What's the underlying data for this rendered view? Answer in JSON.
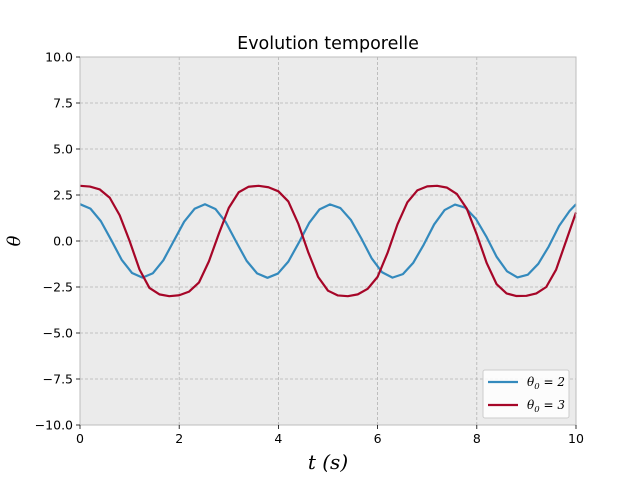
{
  "chart_data": {
    "type": "line",
    "title": "Evolution temporelle",
    "xlabel": "t (s)",
    "ylabel": "θ",
    "xlim": [
      0,
      10
    ],
    "ylim": [
      -10,
      10
    ],
    "xticks": [
      0,
      2,
      4,
      6,
      8,
      10
    ],
    "xtick_labels": [
      "0",
      "2",
      "4",
      "6",
      "8",
      "10"
    ],
    "yticks": [
      10,
      7.5,
      5,
      2.5,
      0,
      -2.5,
      -5,
      -7.5,
      -10
    ],
    "ytick_labels": [
      "10.0",
      "7.5",
      "5.0",
      "2.5",
      "0.0",
      "−2.5",
      "−5.0",
      "−7.5",
      "−10.0"
    ],
    "grid": true,
    "legend_position": "lower-right",
    "background": "#ebebeb",
    "series": [
      {
        "name": "θ0 = 2",
        "legend_main": "θ",
        "legend_sub": "0",
        "legend_rest": " = 2",
        "color": "#348abd",
        "x": [
          0,
          0.21,
          0.42,
          0.63,
          0.84,
          1.05,
          1.26,
          1.47,
          1.68,
          1.89,
          2.1,
          2.31,
          2.52,
          2.73,
          2.94,
          3.15,
          3.36,
          3.57,
          3.78,
          3.99,
          4.2,
          4.41,
          4.62,
          4.83,
          5.04,
          5.25,
          5.46,
          5.67,
          5.88,
          6.09,
          6.3,
          6.51,
          6.72,
          6.93,
          7.14,
          7.35,
          7.56,
          7.77,
          7.98,
          8.19,
          8.4,
          8.61,
          8.82,
          9.03,
          9.24,
          9.45,
          9.66,
          9.87,
          10
        ],
        "y": [
          2,
          1.76,
          1.08,
          0.05,
          -1.02,
          -1.74,
          -1.99,
          -1.75,
          -1.05,
          0.0,
          1.05,
          1.75,
          2.0,
          1.74,
          1.02,
          -0.05,
          -1.08,
          -1.76,
          -2.0,
          -1.77,
          -1.12,
          -0.1,
          0.98,
          1.72,
          1.99,
          1.79,
          1.15,
          0.15,
          -0.94,
          -1.7,
          -1.99,
          -1.8,
          -1.18,
          -0.2,
          0.9,
          1.68,
          1.98,
          1.81,
          1.21,
          0.25,
          -0.86,
          -1.65,
          -1.98,
          -1.83,
          -1.24,
          -0.3,
          0.82,
          1.63,
          2.0
        ]
      },
      {
        "name": "θ0 = 3",
        "legend_main": "θ",
        "legend_sub": "0",
        "legend_rest": " = 3",
        "color": "#a60628",
        "x": [
          0,
          0.2,
          0.4,
          0.6,
          0.8,
          1.0,
          1.2,
          1.4,
          1.6,
          1.8,
          2.0,
          2.2,
          2.4,
          2.6,
          2.8,
          3.0,
          3.2,
          3.4,
          3.6,
          3.8,
          4.0,
          4.2,
          4.4,
          4.6,
          4.8,
          5.0,
          5.2,
          5.4,
          5.6,
          5.8,
          6.0,
          6.2,
          6.4,
          6.6,
          6.8,
          7.0,
          7.2,
          7.4,
          7.6,
          7.8,
          8.0,
          8.2,
          8.4,
          8.6,
          8.8,
          9.0,
          9.2,
          9.4,
          9.6,
          9.8,
          10
        ],
        "y": [
          3.0,
          2.96,
          2.8,
          2.35,
          1.4,
          0.0,
          -1.55,
          -2.55,
          -2.9,
          -3.0,
          -2.95,
          -2.75,
          -2.25,
          -1.1,
          0.4,
          1.8,
          2.65,
          2.95,
          3.0,
          2.92,
          2.7,
          2.15,
          0.95,
          -0.6,
          -1.95,
          -2.7,
          -2.96,
          -3.0,
          -2.9,
          -2.6,
          -1.95,
          -0.65,
          0.9,
          2.1,
          2.75,
          2.97,
          3.0,
          2.9,
          2.55,
          1.75,
          0.35,
          -1.2,
          -2.35,
          -2.85,
          -2.99,
          -2.98,
          -2.85,
          -2.5,
          -1.55,
          0.0,
          1.55
        ]
      }
    ]
  }
}
